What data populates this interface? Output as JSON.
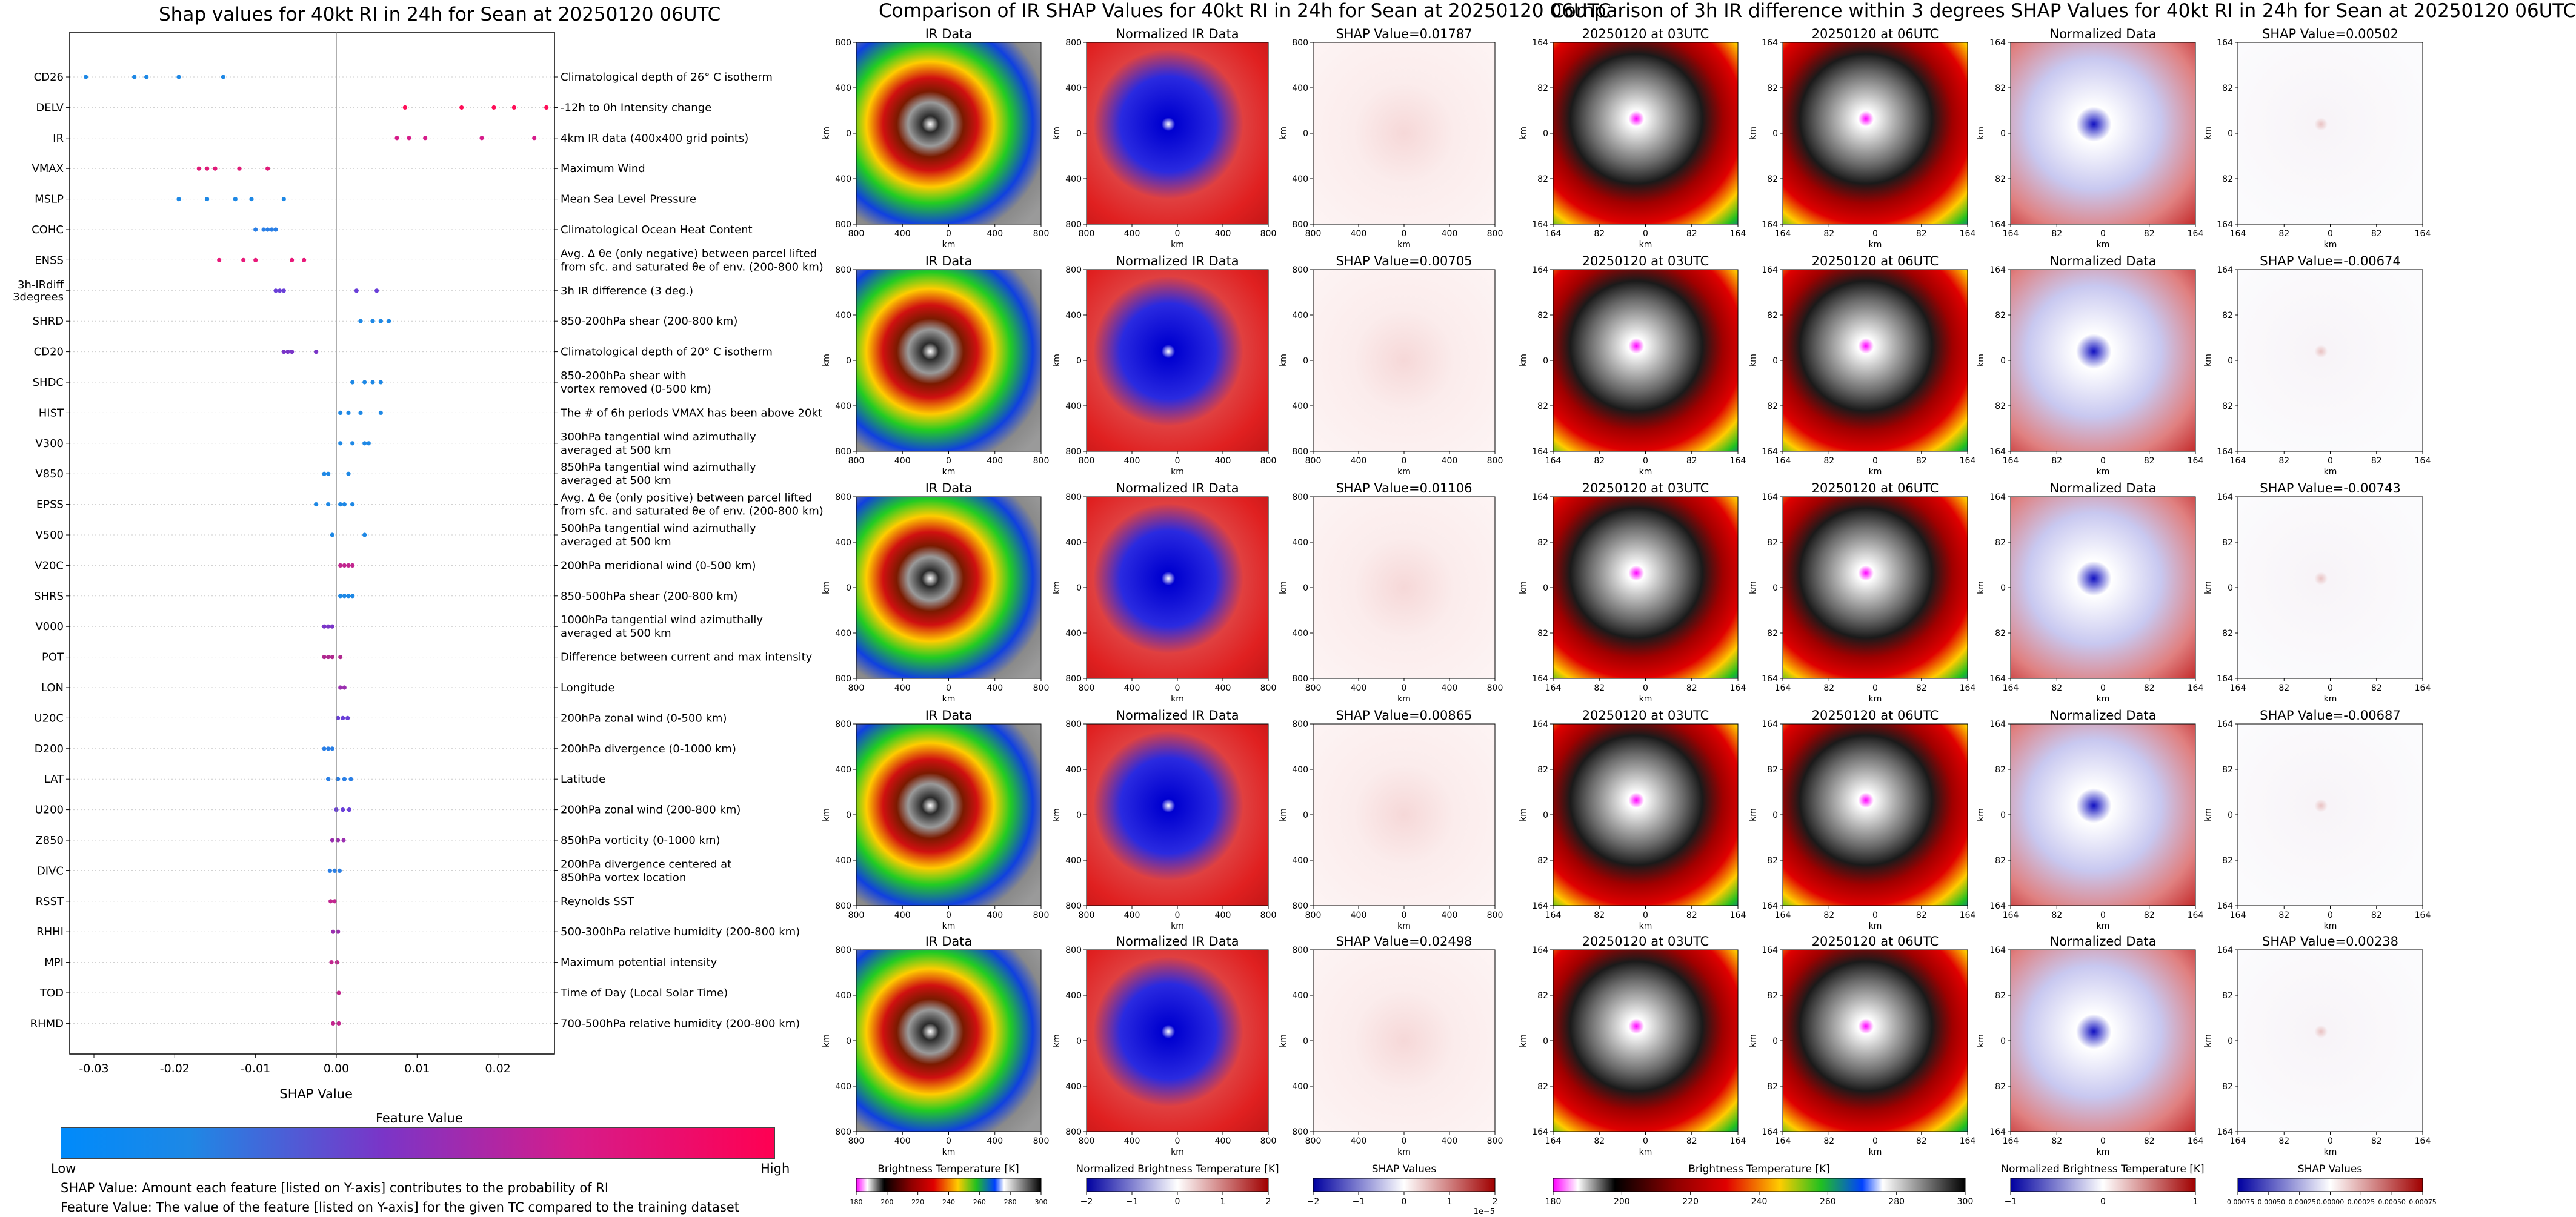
{
  "chart_data": [
    {
      "type": "scatter",
      "title": "Shap values for 40kt RI in 24h for Sean at 20250120 06UTC",
      "xlabel": "SHAP Value",
      "xlim": [
        -0.033,
        0.027
      ],
      "xticks": [
        "-0.03",
        "-0.02",
        "-0.01",
        "0.00",
        "0.01",
        "0.02"
      ],
      "xtick_values": [
        -0.03,
        -0.02,
        -0.01,
        0.0,
        0.01,
        0.02
      ],
      "features": [
        {
          "code": "CD26",
          "desc": [
            "Climatological depth of 26° C isotherm"
          ],
          "values": [
            -0.031,
            -0.025,
            -0.0235,
            -0.0195,
            -0.014
          ],
          "color": "#1e88e5"
        },
        {
          "code": "DELV",
          "desc": [
            "-12h to 0h Intensity change"
          ],
          "values": [
            0.0085,
            0.0155,
            0.0195,
            0.022,
            0.026
          ],
          "color": "#ff0d57"
        },
        {
          "code": "IR",
          "desc": [
            "4km IR data (400x400 grid points)"
          ],
          "values": [
            0.0075,
            0.009,
            0.011,
            0.018,
            0.0245
          ],
          "color": "#d61c8a"
        },
        {
          "code": "VMAX",
          "desc": [
            "Maximum Wind"
          ],
          "values": [
            -0.017,
            -0.016,
            -0.015,
            -0.012,
            -0.0085
          ],
          "color": "#e01a78"
        },
        {
          "code": "MSLP",
          "desc": [
            "Mean Sea Level Pressure"
          ],
          "values": [
            -0.0195,
            -0.016,
            -0.0125,
            -0.0105,
            -0.0065
          ],
          "color": "#1e88e5"
        },
        {
          "code": "COHC",
          "desc": [
            "Climatological Ocean Heat Content"
          ],
          "values": [
            -0.01,
            -0.009,
            -0.0085,
            -0.008,
            -0.0075
          ],
          "color": "#2a7fe6"
        },
        {
          "code": "ENSS",
          "desc": [
            "Avg. Δ θe (only negative) between parcel lifted",
            "from sfc. and saturated θe of env. (200-800 km)"
          ],
          "values": [
            -0.0145,
            -0.0115,
            -0.01,
            -0.0055,
            -0.004
          ],
          "color": "#e8197a"
        },
        {
          "code": "3h-IRdiff\n3degrees",
          "desc": [
            "3h IR difference (3 deg.)"
          ],
          "values": [
            -0.0075,
            -0.007,
            -0.0065,
            0.0025,
            0.005
          ],
          "color": "#6a3fd8"
        },
        {
          "code": "SHRD",
          "desc": [
            "850-200hPa shear (200-800 km)"
          ],
          "values": [
            0.003,
            0.0045,
            0.0055,
            0.0065
          ],
          "color": "#1e88e5"
        },
        {
          "code": "CD20",
          "desc": [
            "Climatological depth of 20° C isotherm"
          ],
          "values": [
            -0.0065,
            -0.006,
            -0.0055,
            -0.0025
          ],
          "color": "#7a35c8"
        },
        {
          "code": "SHDC",
          "desc": [
            "850-200hPa shear with",
            "vortex removed (0-500 km)"
          ],
          "values": [
            0.002,
            0.0035,
            0.0045,
            0.0055
          ],
          "color": "#1e88e5"
        },
        {
          "code": "HIST",
          "desc": [
            "The # of 6h periods VMAX has been above 20kt"
          ],
          "values": [
            0.0005,
            0.0015,
            0.003,
            0.0055
          ],
          "color": "#1e88e5"
        },
        {
          "code": "V300",
          "desc": [
            "300hPa tangential wind azimuthally",
            "averaged at 500 km"
          ],
          "values": [
            0.0005,
            0.002,
            0.0035,
            0.004
          ],
          "color": "#1e88e5"
        },
        {
          "code": "V850",
          "desc": [
            "850hPa tangential wind azimuthally",
            "averaged at 500 km"
          ],
          "values": [
            -0.0015,
            -0.001,
            0.0015
          ],
          "color": "#1e88e5"
        },
        {
          "code": "EPSS",
          "desc": [
            "Avg. Δ θe (only positive) between parcel lifted",
            "from sfc. and saturated θe of env. (200-800 km)"
          ],
          "values": [
            -0.0025,
            -0.001,
            0.0005,
            0.001,
            0.002
          ],
          "color": "#1e88e5"
        },
        {
          "code": "V500",
          "desc": [
            "500hPa tangential wind azimuthally",
            "averaged at 500 km"
          ],
          "values": [
            -0.0005,
            0.0035
          ],
          "color": "#1e88e5"
        },
        {
          "code": "V20C",
          "desc": [
            "200hPa meridional wind (0-500 km)"
          ],
          "values": [
            0.0005,
            0.001,
            0.0015,
            0.002
          ],
          "color": "#c2268f"
        },
        {
          "code": "SHRS",
          "desc": [
            "850-500hPa shear (200-800 km)"
          ],
          "values": [
            0.0005,
            0.001,
            0.0015,
            0.002
          ],
          "color": "#1e88e5"
        },
        {
          "code": "V000",
          "desc": [
            "1000hPa tangential wind azimuthally",
            "averaged at 500 km"
          ],
          "values": [
            -0.0015,
            -0.001,
            -0.0005
          ],
          "color": "#7a35c8"
        },
        {
          "code": "POT",
          "desc": [
            "Difference between current and max intensity"
          ],
          "values": [
            -0.0015,
            -0.001,
            -0.0005,
            0.0005
          ],
          "color": "#b0288f"
        },
        {
          "code": "LON",
          "desc": [
            "Longitude"
          ],
          "values": [
            0.0005,
            0.001
          ],
          "color": "#9b2fb0"
        },
        {
          "code": "U20C",
          "desc": [
            "200hPa zonal wind (0-500 km)"
          ],
          "values": [
            0.0002,
            0.0008,
            0.0014
          ],
          "color": "#6a3fd8"
        },
        {
          "code": "D200",
          "desc": [
            "200hPa divergence (0-1000 km)"
          ],
          "values": [
            -0.0015,
            -0.001,
            -0.0005
          ],
          "color": "#2a7fe6"
        },
        {
          "code": "LAT",
          "desc": [
            "Latitude"
          ],
          "values": [
            -0.001,
            0.0002,
            0.001,
            0.0018
          ],
          "color": "#2a7fe6"
        },
        {
          "code": "U200",
          "desc": [
            "200hPa zonal wind (200-800 km)"
          ],
          "values": [
            0.0,
            0.0008,
            0.0016
          ],
          "color": "#6a3fd8"
        },
        {
          "code": "Z850",
          "desc": [
            "850hPa vorticity (0-1000 km)"
          ],
          "values": [
            -0.0005,
            0.0002,
            0.0009
          ],
          "color": "#9b2fb0"
        },
        {
          "code": "DIVC",
          "desc": [
            "200hPa divergence centered at",
            "850hPa vortex location"
          ],
          "values": [
            -0.0008,
            -0.0002,
            0.0004
          ],
          "color": "#2a7fe6"
        },
        {
          "code": "RSST",
          "desc": [
            "Reynolds SST"
          ],
          "values": [
            -0.0007,
            -0.0002
          ],
          "color": "#c2268f"
        },
        {
          "code": "RHHI",
          "desc": [
            "500-300hPa relative humidity (200-800 km)"
          ],
          "values": [
            -0.0004,
            0.0002
          ],
          "color": "#9b2fb0"
        },
        {
          "code": "MPI",
          "desc": [
            "Maximum potential intensity"
          ],
          "values": [
            -0.0006,
            0.0001
          ],
          "color": "#c2268f"
        },
        {
          "code": "TOD",
          "desc": [
            "Time of Day (Local Solar Time)"
          ],
          "values": [
            0.0003
          ],
          "color": "#c2268f"
        },
        {
          "code": "RHMD",
          "desc": [
            "700-500hPa relative humidity (200-800 km)"
          ],
          "values": [
            -0.0004,
            0.0003
          ],
          "color": "#c2268f"
        }
      ],
      "colorbar": {
        "label": "Feature Value",
        "low": "Low",
        "high": "High",
        "colors": [
          "#008afb",
          "#ff0052"
        ]
      }
    },
    {
      "type": "heatmap",
      "title": "Comparison of IR SHAP Values for 40kt RI in 24h for Sean at 20250120 06UTC",
      "rows": [
        {
          "ir_title": "IR Data",
          "norm_title": "Normalized IR Data",
          "shap_title": "SHAP Value=0.01787"
        },
        {
          "ir_title": "IR Data",
          "norm_title": "Normalized IR Data",
          "shap_title": "SHAP Value=0.00705"
        },
        {
          "ir_title": "IR Data",
          "norm_title": "Normalized IR Data",
          "shap_title": "SHAP Value=0.01106"
        },
        {
          "ir_title": "IR Data",
          "norm_title": "Normalized IR Data",
          "shap_title": "SHAP Value=0.00865"
        },
        {
          "ir_title": "IR Data",
          "norm_title": "Normalized IR Data",
          "shap_title": "SHAP Value=0.02498"
        }
      ],
      "axis_label": "km",
      "axis_ticks": [
        "800",
        "400",
        "0",
        "400",
        "800"
      ],
      "colorbars": [
        {
          "label": "Brightness Temperature [K]",
          "ticks": [
            "180",
            "200",
            "220",
            "240",
            "260",
            "280",
            "300"
          ]
        },
        {
          "label": "Normalized Brightness Temperature [K]",
          "ticks": [
            "−2",
            "−1",
            "0",
            "1",
            "2"
          ]
        },
        {
          "label": "SHAP Values",
          "ticks": [
            "−2",
            "−1",
            "0",
            "1",
            "2"
          ],
          "offset": "1e−5"
        }
      ]
    },
    {
      "type": "heatmap",
      "title": "Comparison of 3h IR difference within 3 degrees SHAP Values for 40kt RI in 24h for Sean at 20250120 06UTC",
      "rows": [
        {
          "t1_title": "20250120 at 03UTC",
          "t2_title": "20250120 at 06UTC",
          "norm_title": "Normalized Data",
          "shap_title": "SHAP Value=0.00502"
        },
        {
          "t1_title": "20250120 at 03UTC",
          "t2_title": "20250120 at 06UTC",
          "norm_title": "Normalized Data",
          "shap_title": "SHAP Value=-0.00674"
        },
        {
          "t1_title": "20250120 at 03UTC",
          "t2_title": "20250120 at 06UTC",
          "norm_title": "Normalized Data",
          "shap_title": "SHAP Value=-0.00743"
        },
        {
          "t1_title": "20250120 at 03UTC",
          "t2_title": "20250120 at 06UTC",
          "norm_title": "Normalized Data",
          "shap_title": "SHAP Value=-0.00687"
        },
        {
          "t1_title": "20250120 at 03UTC",
          "t2_title": "20250120 at 06UTC",
          "norm_title": "Normalized Data",
          "shap_title": "SHAP Value=0.00238"
        }
      ],
      "axis_label": "km",
      "axis_ticks": [
        "164",
        "82",
        "0",
        "82",
        "164"
      ],
      "colorbars": [
        {
          "label": "Brightness Temperature [K]",
          "ticks": [
            "180",
            "200",
            "220",
            "240",
            "260",
            "280",
            "300"
          ]
        },
        {
          "label": "Normalized Brightness Temperature [K]",
          "ticks": [
            "−1",
            "0",
            "1"
          ]
        },
        {
          "label": "SHAP Values",
          "ticks": [
            "−0.00075",
            "−0.00050",
            "−0.00025",
            "0.00000",
            "0.00025",
            "0.00050",
            "0.00075"
          ]
        }
      ]
    }
  ],
  "footnotes": [
    "SHAP Value: Amount each feature [listed on Y-axis] contributes to the probability of RI",
    "Feature Value: The value of the feature [listed on Y-axis] for the given TC compared to the training dataset"
  ]
}
